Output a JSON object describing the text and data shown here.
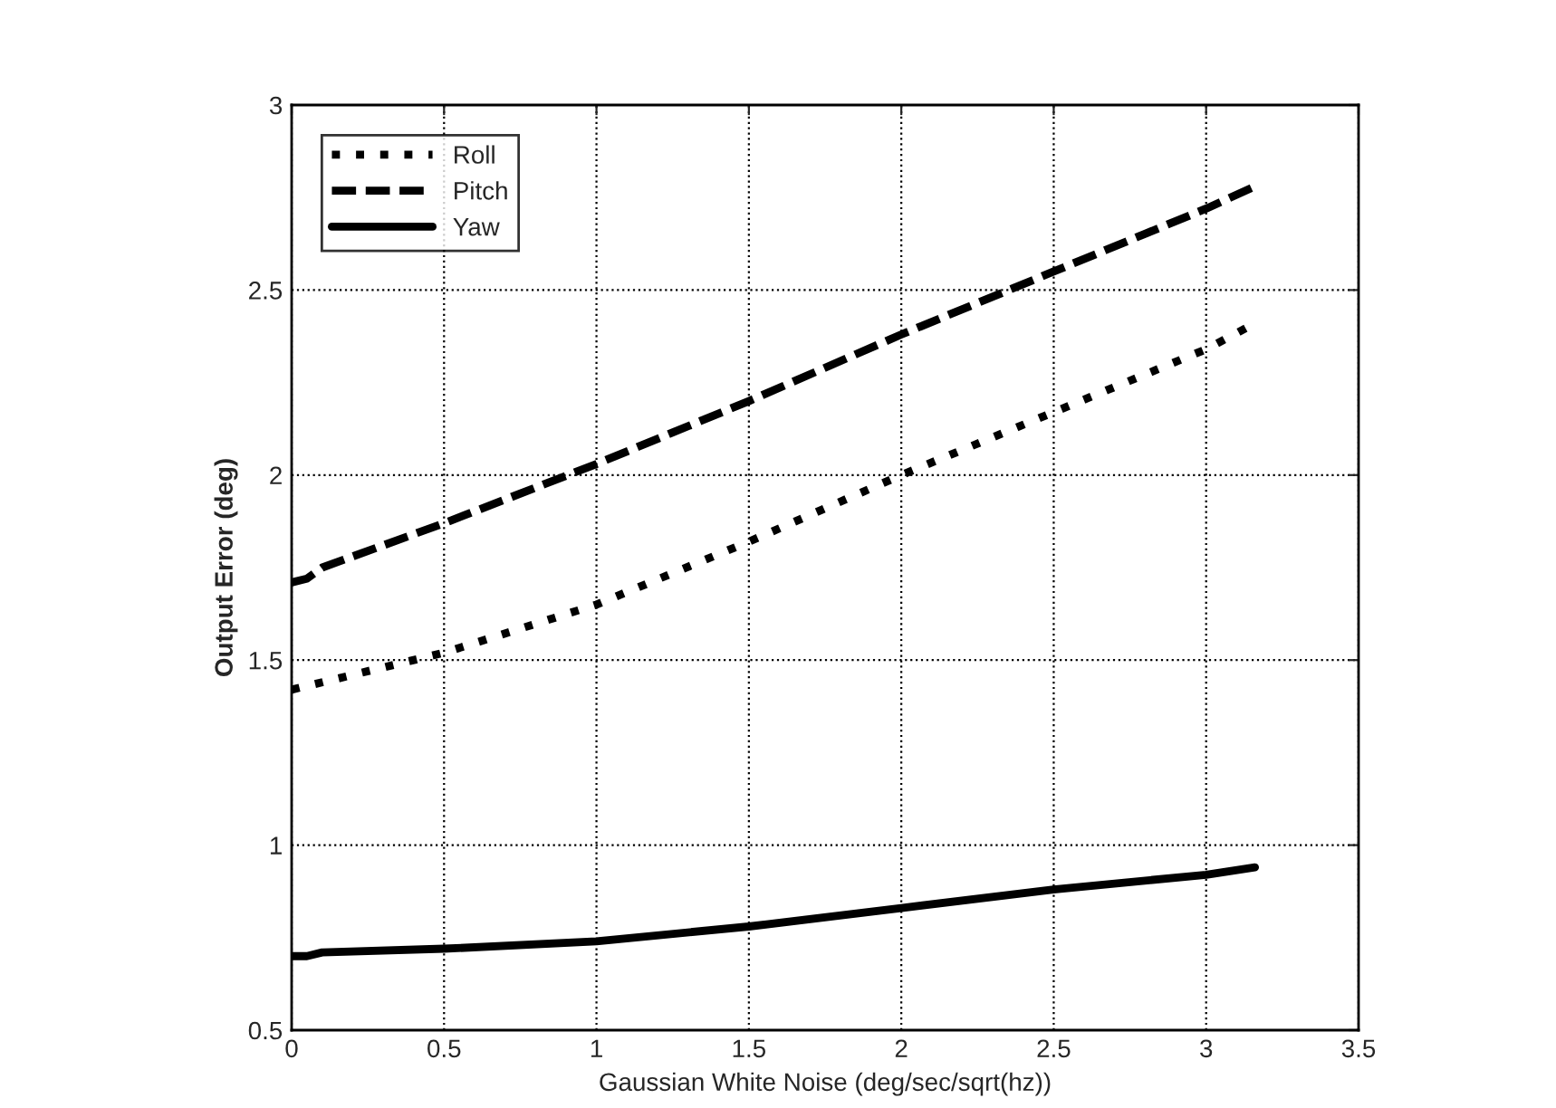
{
  "chart_data": {
    "type": "line",
    "xlabel": "Gaussian White Noise (deg/sec/sqrt(hz))",
    "ylabel": "Output Error (deg)",
    "xlim": [
      0,
      3.5
    ],
    "xticks": [
      0,
      0.5,
      1,
      1.5,
      2,
      2.5,
      3,
      3.5
    ],
    "ylim": [
      0.5,
      3
    ],
    "yticks": [
      0.5,
      1,
      1.5,
      2,
      2.5,
      3
    ],
    "grid": true,
    "legend": "top left",
    "series": [
      {
        "name": "Roll",
        "color": "#000000",
        "line_style": "dotted",
        "x": [
          0,
          0.5,
          1,
          1.5,
          2,
          2.5,
          3,
          3.16
        ],
        "values": [
          1.42,
          1.52,
          1.65,
          1.82,
          2.0,
          2.17,
          2.34,
          2.41
        ]
      },
      {
        "name": "Pitch",
        "color": "#000000",
        "line_style": "dashed",
        "x": [
          0,
          0.05,
          0.1,
          0.5,
          1,
          1.5,
          2,
          2.5,
          3,
          3.16
        ],
        "values": [
          1.71,
          1.72,
          1.75,
          1.87,
          2.03,
          2.2,
          2.38,
          2.55,
          2.72,
          2.78
        ]
      },
      {
        "name": "Yaw",
        "color": "#000000",
        "line_style": "solid",
        "x": [
          0,
          0.05,
          0.1,
          0.5,
          1,
          1.5,
          2,
          2.5,
          3,
          3.16
        ],
        "values": [
          0.7,
          0.7,
          0.71,
          0.72,
          0.74,
          0.78,
          0.83,
          0.88,
          0.92,
          0.94
        ]
      }
    ]
  }
}
